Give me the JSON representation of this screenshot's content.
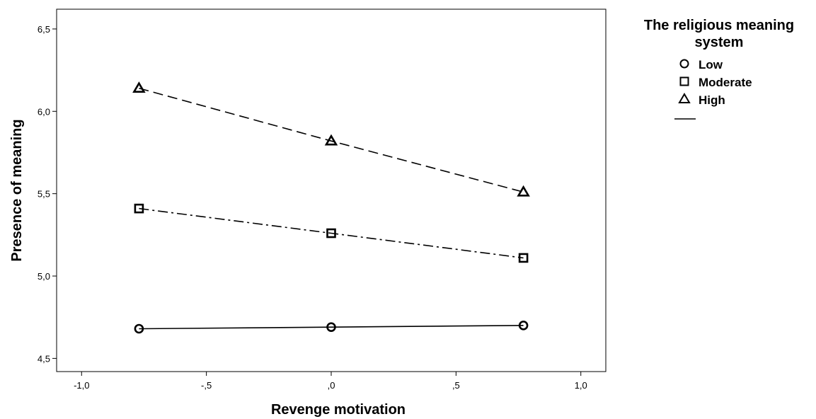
{
  "chart_data": {
    "type": "line",
    "xlabel": "Revenge motivation",
    "ylabel": "Presence of meaning",
    "xlim": [
      -1.1,
      1.1
    ],
    "ylim": [
      4.42,
      6.62
    ],
    "x_ticks": [
      -1.0,
      -0.5,
      0.0,
      0.5,
      1.0
    ],
    "x_tick_labels": [
      "-1,0",
      "-,5",
      ",0",
      ",5",
      "1,0"
    ],
    "y_ticks": [
      4.5,
      5.0,
      5.5,
      6.0,
      6.5
    ],
    "y_tick_labels": [
      "4,5",
      "5,0",
      "5,5",
      "6,0",
      "6,5"
    ],
    "grid": false,
    "legend": {
      "title_line1": "The religious meaning",
      "title_line2": "system",
      "placement": "right"
    },
    "x": [
      -0.77,
      0.0,
      0.77
    ],
    "series": [
      {
        "name": "Low",
        "marker": "circle",
        "dash": "solid",
        "values": [
          4.68,
          4.69,
          4.7
        ]
      },
      {
        "name": "Moderate",
        "marker": "square",
        "dash": "dashdot",
        "values": [
          5.41,
          5.26,
          5.11
        ]
      },
      {
        "name": "High",
        "marker": "triangle",
        "dash": "dashed",
        "values": [
          6.14,
          5.82,
          5.51
        ]
      }
    ]
  }
}
